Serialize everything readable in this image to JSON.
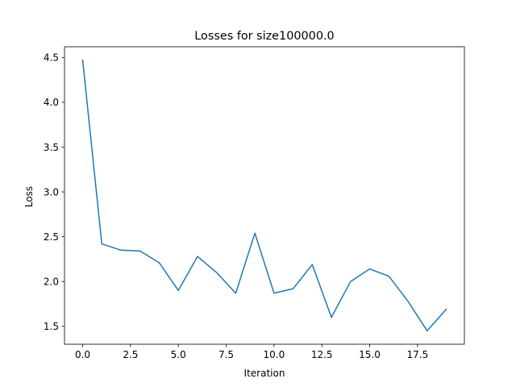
{
  "chart_data": {
    "type": "line",
    "title": "Losses for size100000.0",
    "xlabel": "Iteration",
    "ylabel": "Loss",
    "xlim": [
      -0.95,
      19.95
    ],
    "ylim": [
      1.3,
      4.62
    ],
    "xticks": [
      0.0,
      2.5,
      5.0,
      7.5,
      10.0,
      12.5,
      15.0,
      17.5
    ],
    "xtick_labels": [
      "0.0",
      "2.5",
      "5.0",
      "7.5",
      "10.0",
      "12.5",
      "15.0",
      "17.5"
    ],
    "yticks": [
      1.5,
      2.0,
      2.5,
      3.0,
      3.5,
      4.0,
      4.5
    ],
    "ytick_labels": [
      "1.5",
      "2.0",
      "2.5",
      "3.0",
      "3.5",
      "4.0",
      "4.5"
    ],
    "grid": false,
    "legend": false,
    "series": [
      {
        "color": "#1f77b4",
        "x": [
          0,
          1,
          2,
          3,
          4,
          5,
          6,
          7,
          8,
          9,
          10,
          11,
          12,
          13,
          14,
          15,
          16,
          17,
          18,
          19
        ],
        "values": [
          4.47,
          2.42,
          2.35,
          2.34,
          2.21,
          1.9,
          2.28,
          2.1,
          1.87,
          2.54,
          1.87,
          1.92,
          2.19,
          1.6,
          2.0,
          2.14,
          2.06,
          1.78,
          1.45,
          1.69
        ]
      }
    ]
  }
}
